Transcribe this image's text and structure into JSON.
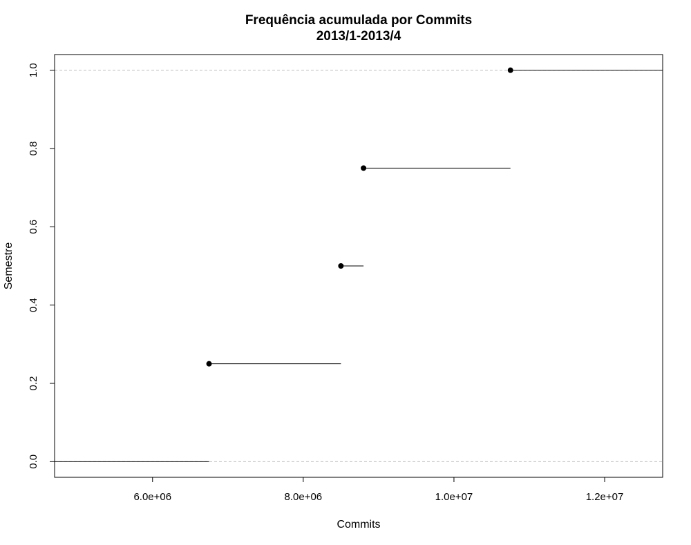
{
  "chart_data": {
    "type": "step",
    "title": "Frequência acumulada por Commits",
    "subtitle": "2013/1-2013/4",
    "xlabel": "Commits",
    "ylabel": "Semestre",
    "xlim": [
      4700000,
      12770000
    ],
    "ylim": [
      -0.04,
      1.04
    ],
    "x_ticks": [
      {
        "value": 6000000,
        "label": "6.0e+06"
      },
      {
        "value": 8000000,
        "label": "8.0e+06"
      },
      {
        "value": 10000000,
        "label": "1.0e+07"
      },
      {
        "value": 12000000,
        "label": "1.2e+07"
      }
    ],
    "y_ticks": [
      {
        "value": 0.0,
        "label": "0.0"
      },
      {
        "value": 0.2,
        "label": "0.2"
      },
      {
        "value": 0.4,
        "label": "0.4"
      },
      {
        "value": 0.6,
        "label": "0.6"
      },
      {
        "value": 0.8,
        "label": "0.8"
      },
      {
        "value": 1.0,
        "label": "1.0"
      }
    ],
    "reference_lines_y": [
      0,
      1
    ],
    "points": [
      {
        "x": 6750000,
        "y": 0.25
      },
      {
        "x": 8500000,
        "y": 0.5
      },
      {
        "x": 8800000,
        "y": 0.75
      },
      {
        "x": 10750000,
        "y": 1.0
      }
    ],
    "grid": false
  }
}
